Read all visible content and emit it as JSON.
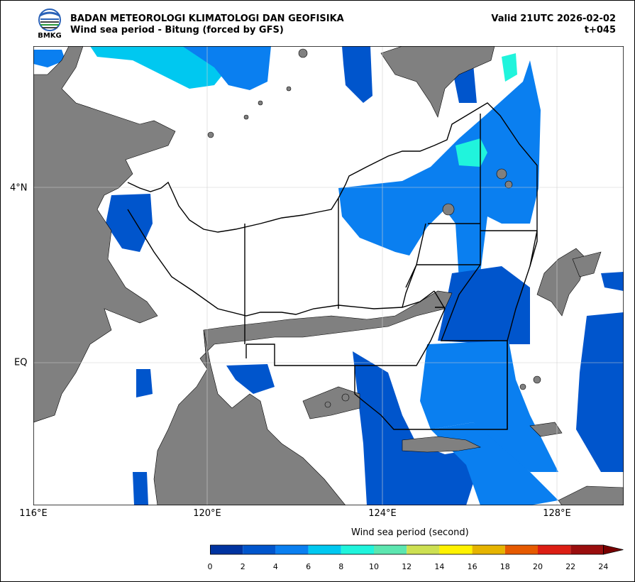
{
  "header": {
    "agency": "BADAN METEOROLOGI KLIMATOLOGI DAN GEOFISIKA",
    "subtitle": "Wind sea period - Bitung (forced by GFS)",
    "valid": "Valid 21UTC 2026-02-02",
    "lead": "t+045",
    "logo_text": "BMKG"
  },
  "map": {
    "lon_labels": [
      "116°E",
      "120°E",
      "124°E",
      "128°E"
    ],
    "lat_labels": [
      "4°N",
      "EQ"
    ],
    "colors": {
      "land": "#808080",
      "sea_none": "#ffffff",
      "grid": "#d0d0d0"
    }
  },
  "colorbar": {
    "title": "Wind sea period (second)",
    "ticks": [
      "0",
      "2",
      "4",
      "6",
      "8",
      "10",
      "12",
      "14",
      "16",
      "18",
      "20",
      "22",
      "24"
    ],
    "colors": [
      "#0033a0",
      "#0055cc",
      "#0a7ff0",
      "#00c8f0",
      "#20f4dc",
      "#5ce6b0",
      "#cde052",
      "#fff200",
      "#e6b400",
      "#e65a00",
      "#dc1e14",
      "#9a0e0e",
      "#780000"
    ]
  }
}
